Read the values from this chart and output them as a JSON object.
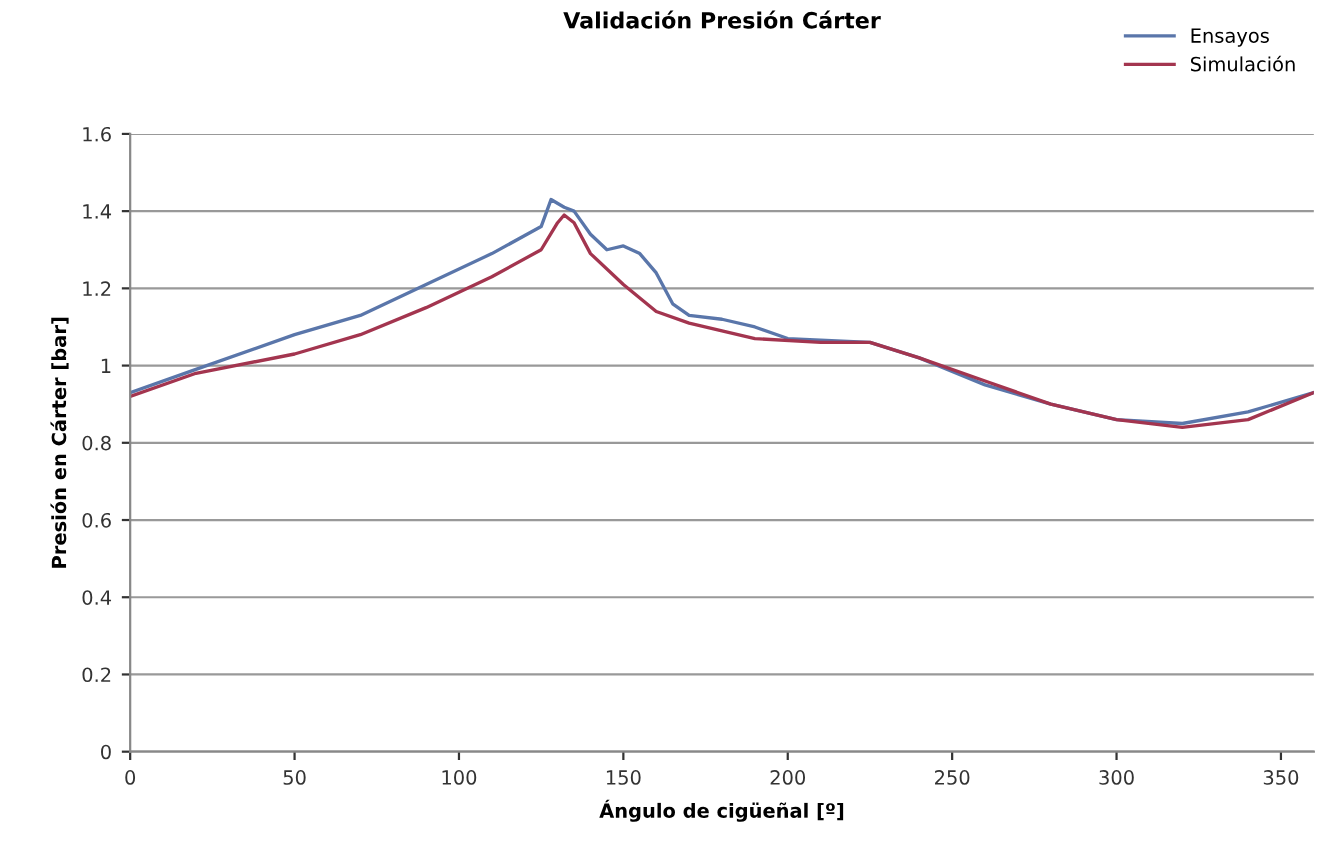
{
  "chart_data": {
    "type": "line",
    "title": "Validación Presión Cárter",
    "xlabel": "Ángulo de cigüeñal [º]",
    "ylabel": "Presión en Cárter [bar]",
    "xlim": [
      0,
      360
    ],
    "xticks": [
      0,
      50,
      100,
      150,
      200,
      250,
      300,
      350
    ],
    "ylim": [
      0,
      1.6
    ],
    "yticks": [
      0,
      0.2,
      0.4,
      0.6,
      0.8,
      1,
      1.2,
      1.4,
      1.6
    ],
    "grid": "y",
    "legend": "top right",
    "marker": "none",
    "line_style": "solid",
    "series": [
      {
        "name": "Ensayos",
        "color": "#5a76aa",
        "x": [
          0,
          20,
          50,
          70,
          90,
          110,
          125,
          128,
          132,
          135,
          140,
          145,
          150,
          155,
          160,
          165,
          170,
          180,
          190,
          200,
          225,
          240,
          260,
          280,
          300,
          320,
          340,
          360
        ],
        "values": [
          0.93,
          0.99,
          1.08,
          1.13,
          1.21,
          1.29,
          1.36,
          1.43,
          1.41,
          1.4,
          1.34,
          1.3,
          1.31,
          1.29,
          1.24,
          1.16,
          1.13,
          1.12,
          1.1,
          1.07,
          1.06,
          1.02,
          0.95,
          0.9,
          0.86,
          0.85,
          0.88,
          0.93
        ]
      },
      {
        "name": "Simulación",
        "color": "#a3354f",
        "x": [
          0,
          20,
          50,
          70,
          90,
          110,
          125,
          130,
          132,
          135,
          140,
          150,
          160,
          170,
          180,
          190,
          210,
          225,
          240,
          260,
          280,
          300,
          320,
          340,
          360
        ],
        "values": [
          0.92,
          0.98,
          1.03,
          1.08,
          1.15,
          1.23,
          1.3,
          1.37,
          1.39,
          1.37,
          1.29,
          1.21,
          1.14,
          1.11,
          1.09,
          1.07,
          1.06,
          1.06,
          1.02,
          0.96,
          0.9,
          0.86,
          0.84,
          0.86,
          0.93
        ]
      }
    ]
  }
}
